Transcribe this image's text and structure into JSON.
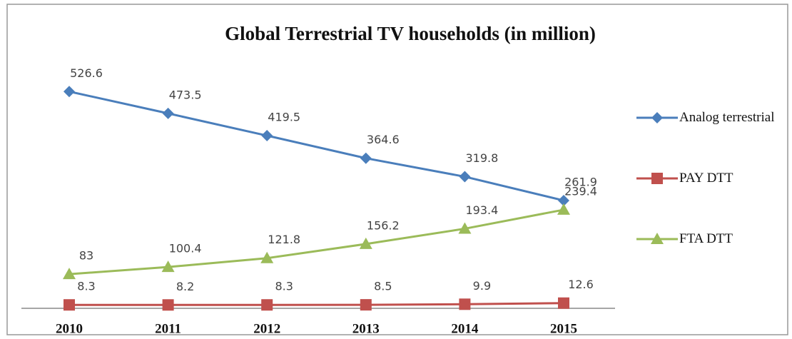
{
  "chart_data": {
    "type": "line",
    "title": "Global Terrestrial TV households (in million)",
    "categories": [
      "2010",
      "2011",
      "2012",
      "2013",
      "2014",
      "2015"
    ],
    "series": [
      {
        "name": "Analog terrestrial",
        "color": "#4a7ebb",
        "marker": "diamond",
        "values": [
          526.6,
          473.5,
          419.5,
          364.6,
          319.8,
          261.9
        ]
      },
      {
        "name": "PAY DTT",
        "color": "#c0504d",
        "marker": "square",
        "values": [
          8.3,
          8.2,
          8.3,
          8.5,
          9.9,
          12.6
        ]
      },
      {
        "name": "FTA DTT",
        "color": "#9bbb59",
        "marker": "triangle",
        "values": [
          83,
          100.4,
          121.8,
          156.2,
          193.4,
          239.4
        ]
      }
    ],
    "ylim": [
      0,
      560
    ],
    "legend": "right"
  }
}
